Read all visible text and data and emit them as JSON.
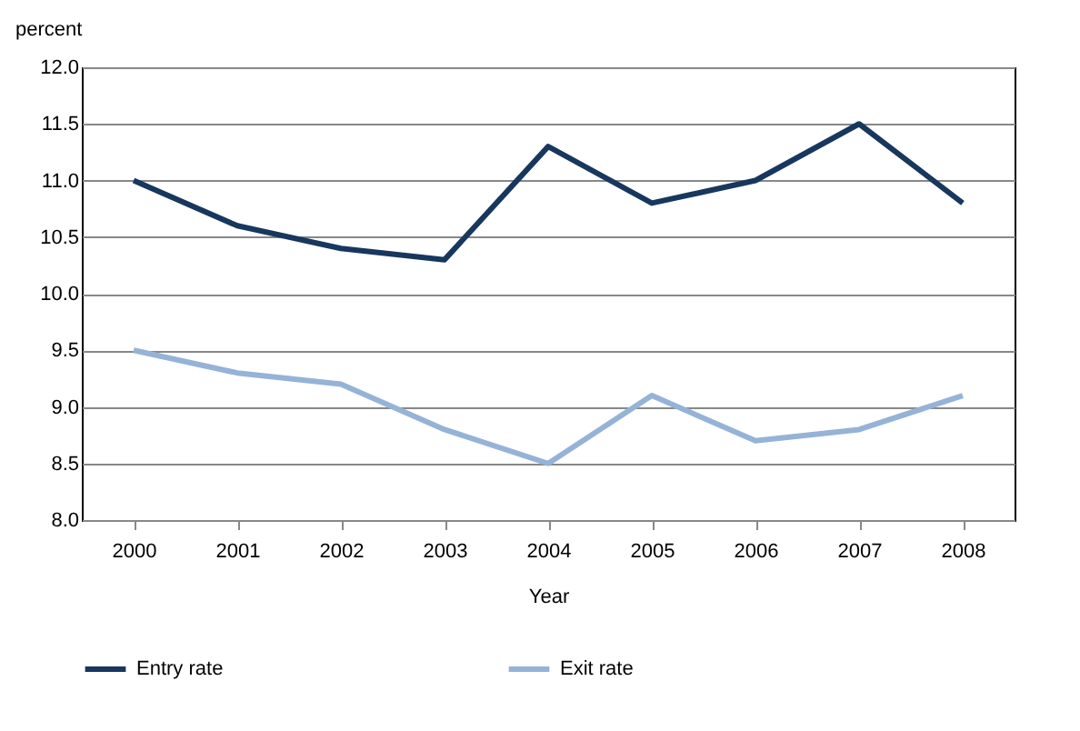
{
  "chart_data": {
    "type": "line",
    "ylabel": "percent",
    "xlabel": "Year",
    "categories": [
      "2000",
      "2001",
      "2002",
      "2003",
      "2004",
      "2005",
      "2006",
      "2007",
      "2008"
    ],
    "series": [
      {
        "name": "Entry rate",
        "color": "#17375e",
        "values": [
          11.0,
          10.6,
          10.4,
          10.3,
          11.3,
          10.8,
          11.0,
          11.5,
          10.8
        ]
      },
      {
        "name": "Exit rate",
        "color": "#95b3d7",
        "values": [
          9.5,
          9.3,
          9.2,
          8.8,
          8.5,
          9.1,
          8.7,
          8.8,
          9.1
        ]
      }
    ],
    "ylim": [
      8.0,
      12.0
    ],
    "yticks": [
      {
        "value": 8,
        "label": "8.0"
      },
      {
        "value": 8.5,
        "label": "8.5"
      },
      {
        "value": 9,
        "label": "9.0"
      },
      {
        "value": 9.5,
        "label": "9.5"
      },
      {
        "value": 10,
        "label": "10.0"
      },
      {
        "value": 10.5,
        "label": "10.5"
      },
      {
        "value": 11,
        "label": "11.0"
      },
      {
        "value": 11.5,
        "label": "11.5"
      },
      {
        "value": 12,
        "label": "12.0"
      }
    ],
    "grid": "y",
    "legend": "bottom",
    "marker": "none",
    "line_style": "solid"
  }
}
